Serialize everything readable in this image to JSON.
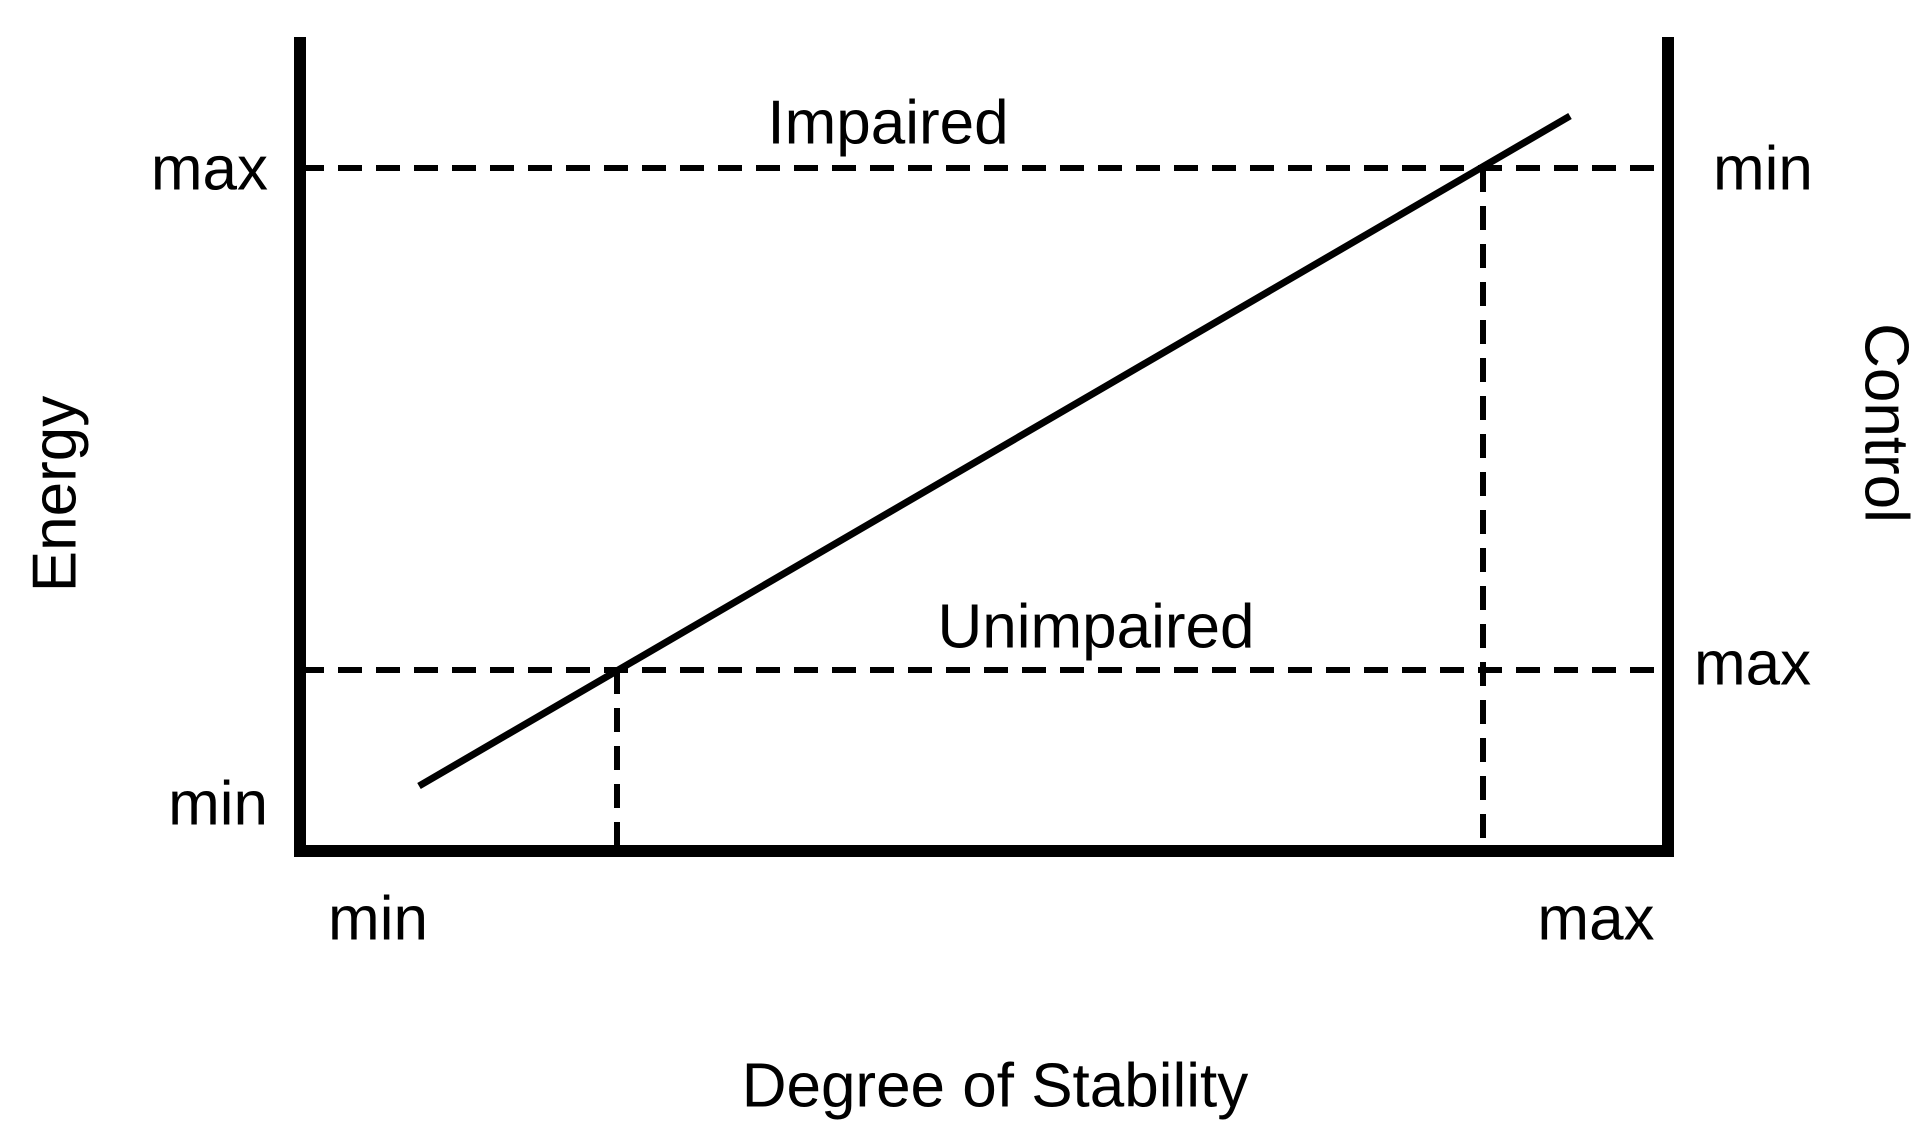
{
  "diagram": {
    "left_axis": {
      "label": "Energy",
      "top_label": "max",
      "bottom_label": "min"
    },
    "right_axis": {
      "label": "Control",
      "upper_label": "min",
      "lower_label": "max"
    },
    "bottom_axis": {
      "label": "Degree of Stability",
      "left_label": "min",
      "right_label": "max"
    },
    "annotations": {
      "upper_line": "Impaired",
      "lower_line": "Unimpaired"
    }
  }
}
